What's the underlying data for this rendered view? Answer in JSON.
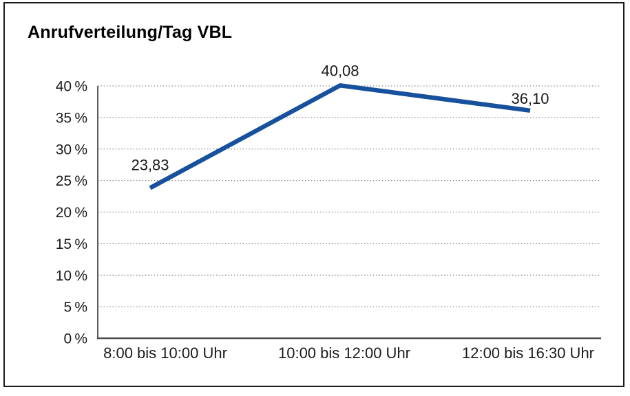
{
  "window": {
    "background_color": "#ffffff",
    "border_color": "#1a1a1a"
  },
  "chart": {
    "title": "Anrufverteilung/Tag VBL"
  },
  "chart_data": {
    "type": "line",
    "title": "Anrufverteilung/Tag VBL",
    "categories": [
      "8:00 bis 10:00 Uhr",
      "10:00 bis 12:00 Uhr",
      "12:00 bis 16:30 Uhr"
    ],
    "values": [
      23.83,
      40.08,
      36.1
    ],
    "value_labels": [
      "23,83",
      "40,08",
      "36,10"
    ],
    "xlabel": "",
    "ylabel": "",
    "ylim": [
      0,
      40
    ],
    "ytick_step": 5,
    "ytick_labels": [
      "0 %",
      "5 %",
      "10 %",
      "15 %",
      "20 %",
      "25 %",
      "30 %",
      "35 %",
      "40 %"
    ],
    "grid": "horizontal-dotted",
    "gridline_color": "#8c8c8c",
    "axis_color": "#333333",
    "legend": "none",
    "line_color": "#17519d",
    "label_color": "#1a1a1a"
  }
}
